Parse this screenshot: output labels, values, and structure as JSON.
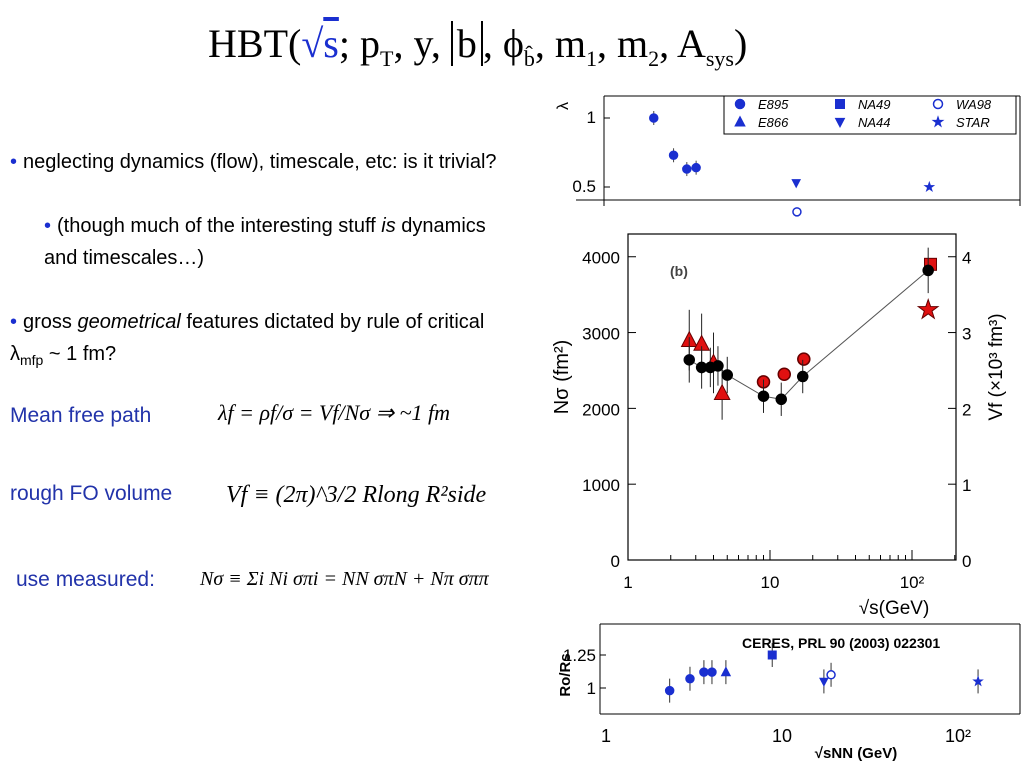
{
  "title": {
    "prefix": "HBT(",
    "sqrt_s": "s",
    "sep1": "; p",
    "pT_sub": "T",
    "mid1": ", y, ",
    "b": "b",
    "mid2": ", ϕ",
    "phi_sub": "b̂",
    "mid3": ", m",
    "m1_sub": "1",
    "mid4": ", m",
    "m2_sub": "2",
    "mid5": ", A",
    "A_sub": "sys",
    "suffix": ")"
  },
  "bullets": {
    "b1": "neglecting dynamics (flow), timescale, etc: is it trivial?",
    "b1a_pre": "(though much of the interesting stuff ",
    "b1a_em": "is",
    "b1a_post": " dynamics and timescales…)",
    "b2_pre": "gross ",
    "b2_em": "geometrical",
    "b2_mid": " features dictated by rule of critical λ",
    "b2_sub": "mfp",
    "b2_post": " ~ 1 fm?"
  },
  "labels": {
    "mean_free_path": "Mean free path",
    "fo_volume": "rough FO volume",
    "use_measured": "use measured:"
  },
  "equations": {
    "mfp": "λf = ρf/σ = Vf/Nσ ⇒ ~1 fm",
    "fo": "Vf ≡ (2π)^3/2 Rlong R²side",
    "measured": "Nσ ≡ Σi Ni σπi = NN σπN + Nπ σππ"
  },
  "chart_data": [
    {
      "type": "scatter",
      "ylabel": "λ",
      "log_x": true,
      "y_ticks": [
        "1",
        "0.5"
      ],
      "legend": [
        "E895",
        "NA49",
        "WA98",
        "E866",
        "NA44",
        "STAR"
      ],
      "legend_position": "top-right",
      "series": [
        {
          "name": "E895",
          "x": [
            2.0,
            2.7,
            3.3,
            3.8
          ],
          "y": [
            1.0,
            0.73,
            0.63,
            0.64
          ]
        },
        {
          "name": "NA44",
          "x": [
            17.3
          ],
          "y": [
            0.53
          ]
        },
        {
          "name": "WA98",
          "x": [
            17.5
          ],
          "y": [
            0.32
          ]
        },
        {
          "name": "STAR",
          "x": [
            130
          ],
          "y": [
            0.5
          ]
        }
      ]
    },
    {
      "type": "scatter",
      "panel_label": "(b)",
      "xlabel": "√s(GeV)",
      "ylabel": "Nσ (fm²)",
      "y2label": "Vf (×10³ fm³)",
      "log_x": true,
      "xlim": [
        1,
        300
      ],
      "ylim": [
        0,
        4300
      ],
      "y2lim": [
        0,
        4.3
      ],
      "x_ticks": [
        "1",
        "10",
        "10²"
      ],
      "y_ticks": [
        "0",
        "1000",
        "2000",
        "3000",
        "4000"
      ],
      "y2_ticks": [
        "0",
        "1",
        "2",
        "3",
        "4"
      ],
      "series": [
        {
          "name": "Nσ",
          "x": [
            2.7,
            3.3,
            3.8,
            4.3,
            5.0,
            9.0,
            12.0,
            17.0,
            130
          ],
          "y": [
            2640,
            2540,
            2540,
            2560,
            2440,
            2160,
            2120,
            2420,
            3820
          ],
          "err": [
            300,
            280,
            260,
            260,
            240,
            220,
            220,
            220,
            300
          ]
        },
        {
          "name": "Vf triangles",
          "x": [
            2.7,
            3.3,
            4.0,
            4.6
          ],
          "y": [
            2.9,
            2.85,
            2.6,
            2.2
          ],
          "err": [
            0.4,
            0.4,
            0.4,
            0.35
          ]
        },
        {
          "name": "Vf circles",
          "x": [
            9.0,
            12.6,
            17.3
          ],
          "y": [
            2.35,
            2.45,
            2.65
          ]
        },
        {
          "name": "Vf square",
          "x": [
            135
          ],
          "y": [
            3.9
          ]
        },
        {
          "name": "Vf star",
          "x": [
            130
          ],
          "y": [
            3.3
          ]
        }
      ]
    },
    {
      "type": "scatter",
      "xlabel": "√sNN (GeV)",
      "ylabel": "Ro/Rs",
      "log_x": true,
      "x_ticks": [
        "1",
        "10",
        "10²"
      ],
      "y_ticks": [
        "1.25",
        "1"
      ],
      "citation": "CERES, PRL 90 (2003) 022301",
      "series": [
        {
          "name": "E895",
          "x": [
            2.3,
            3.0,
            3.6,
            4.0
          ],
          "y": [
            0.98,
            1.07,
            1.12,
            1.12
          ]
        },
        {
          "name": "E866",
          "x": [
            4.8
          ],
          "y": [
            1.12
          ]
        },
        {
          "name": "NA49",
          "x": [
            8.8
          ],
          "y": [
            1.25
          ]
        },
        {
          "name": "NA44",
          "x": [
            17.3
          ],
          "y": [
            1.05
          ]
        },
        {
          "name": "WA98",
          "x": [
            19.0
          ],
          "y": [
            1.1
          ]
        },
        {
          "name": "STAR",
          "x": [
            130
          ],
          "y": [
            1.05
          ]
        }
      ]
    }
  ]
}
